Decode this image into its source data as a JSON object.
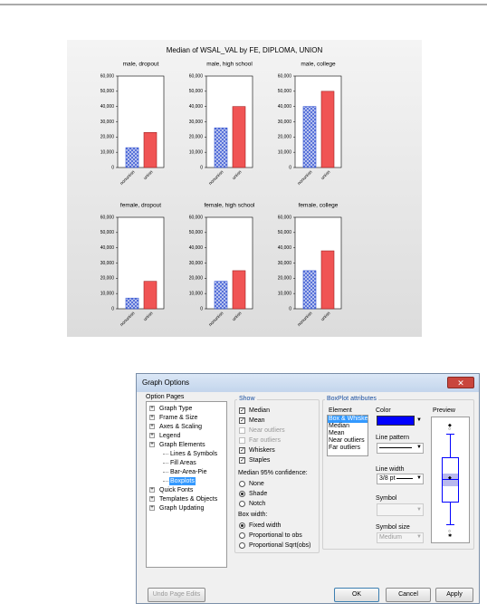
{
  "figure": {
    "title": "Median of WSAL_VAL by FE, DIPLOMA, UNION"
  },
  "chart_data": [
    {
      "type": "bar",
      "title": "male, dropout",
      "categories": [
        "nonunion",
        "union"
      ],
      "values": [
        13000,
        23000
      ],
      "colors": [
        "#3050d0",
        "#f05454"
      ],
      "ylim": [
        0,
        60000
      ],
      "yticks": [
        0,
        {
          "value": 10000,
          "label": "10,000"
        },
        {
          "value": 20000,
          "label": "20,000"
        },
        {
          "value": 30000,
          "label": "30,000"
        },
        {
          "value": 40000,
          "label": "40,000"
        },
        {
          "value": 50000,
          "label": "50,000"
        },
        {
          "value": 60000,
          "label": "60,000"
        }
      ]
    },
    {
      "type": "bar",
      "title": "male, high school",
      "categories": [
        "nonunion",
        "union"
      ],
      "values": [
        26000,
        40000
      ],
      "colors": [
        "#3050d0",
        "#f05454"
      ],
      "ylim": [
        0,
        60000
      ],
      "yticks": [
        0,
        {
          "value": 10000,
          "label": "10,000"
        },
        {
          "value": 20000,
          "label": "20,000"
        },
        {
          "value": 30000,
          "label": "30,000"
        },
        {
          "value": 40000,
          "label": "40,000"
        },
        {
          "value": 50000,
          "label": "50,000"
        },
        {
          "value": 60000,
          "label": "60,000"
        }
      ]
    },
    {
      "type": "bar",
      "title": "male, college",
      "categories": [
        "nonunion",
        "union"
      ],
      "values": [
        40000,
        50000
      ],
      "colors": [
        "#3050d0",
        "#f05454"
      ],
      "ylim": [
        0,
        60000
      ],
      "yticks": [
        0,
        {
          "value": 10000,
          "label": "10,000"
        },
        {
          "value": 20000,
          "label": "20,000"
        },
        {
          "value": 30000,
          "label": "30,000"
        },
        {
          "value": 40000,
          "label": "40,000"
        },
        {
          "value": 50000,
          "label": "50,000"
        },
        {
          "value": 60000,
          "label": "60,000"
        }
      ]
    },
    {
      "type": "bar",
      "title": "female, dropout",
      "categories": [
        "nonunion",
        "union"
      ],
      "values": [
        7000,
        18000
      ],
      "colors": [
        "#3050d0",
        "#f05454"
      ],
      "ylim": [
        0,
        60000
      ],
      "yticks": [
        0,
        {
          "value": 10000,
          "label": "10,000"
        },
        {
          "value": 20000,
          "label": "20,000"
        },
        {
          "value": 30000,
          "label": "30,000"
        },
        {
          "value": 40000,
          "label": "40,000"
        },
        {
          "value": 50000,
          "label": "50,000"
        },
        {
          "value": 60000,
          "label": "60,000"
        }
      ]
    },
    {
      "type": "bar",
      "title": "female, high school",
      "categories": [
        "nonunion",
        "union"
      ],
      "values": [
        18000,
        25000
      ],
      "colors": [
        "#3050d0",
        "#f05454"
      ],
      "ylim": [
        0,
        60000
      ],
      "yticks": [
        0,
        {
          "value": 10000,
          "label": "10,000"
        },
        {
          "value": 20000,
          "label": "20,000"
        },
        {
          "value": 30000,
          "label": "30,000"
        },
        {
          "value": 40000,
          "label": "40,000"
        },
        {
          "value": 50000,
          "label": "50,000"
        },
        {
          "value": 60000,
          "label": "60,000"
        }
      ]
    },
    {
      "type": "bar",
      "title": "female, college",
      "categories": [
        "nonunion",
        "union"
      ],
      "values": [
        25000,
        38000
      ],
      "colors": [
        "#3050d0",
        "#f05454"
      ],
      "ylim": [
        0,
        60000
      ],
      "yticks": [
        0,
        {
          "value": 10000,
          "label": "10,000"
        },
        {
          "value": 20000,
          "label": "20,000"
        },
        {
          "value": 30000,
          "label": "30,000"
        },
        {
          "value": 40000,
          "label": "40,000"
        },
        {
          "value": 50000,
          "label": "50,000"
        },
        {
          "value": 60000,
          "label": "60,000"
        }
      ]
    }
  ],
  "dialog": {
    "title": "Graph Options",
    "option_pages": {
      "label": "Option Pages",
      "items": [
        {
          "text": "Graph Type",
          "level": 0,
          "selected": false
        },
        {
          "text": "Frame & Size",
          "level": 0,
          "selected": false
        },
        {
          "text": "Axes & Scaling",
          "level": 0,
          "selected": false
        },
        {
          "text": "Legend",
          "level": 0,
          "selected": false
        },
        {
          "text": "Graph Elements",
          "level": 0,
          "selected": false
        },
        {
          "text": "Lines & Symbols",
          "level": 1,
          "selected": false
        },
        {
          "text": "Fill Areas",
          "level": 1,
          "selected": false
        },
        {
          "text": "Bar-Area-Pie",
          "level": 1,
          "selected": false
        },
        {
          "text": "Boxplots",
          "level": 1,
          "selected": true
        },
        {
          "text": "Quick Fonts",
          "level": 0,
          "selected": false
        },
        {
          "text": "Templates & Objects",
          "level": 0,
          "selected": false
        },
        {
          "text": "Graph Updating",
          "level": 0,
          "selected": false
        }
      ]
    },
    "show": {
      "label": "Show",
      "checks": [
        {
          "text": "Median",
          "checked": true,
          "enabled": true
        },
        {
          "text": "Mean",
          "checked": true,
          "enabled": true
        },
        {
          "text": "Near outliers",
          "checked": false,
          "enabled": false
        },
        {
          "text": "Far outliers",
          "checked": false,
          "enabled": false
        },
        {
          "text": "Whiskers",
          "checked": true,
          "enabled": true
        },
        {
          "text": "Staples",
          "checked": true,
          "enabled": true
        }
      ]
    },
    "median_ci": {
      "label": "Median 95% confidence:",
      "options": [
        {
          "text": "None",
          "selected": false
        },
        {
          "text": "Shade",
          "selected": true
        },
        {
          "text": "Notch",
          "selected": false
        }
      ]
    },
    "box_width": {
      "label": "Box width:",
      "options": [
        {
          "text": "Fixed width",
          "selected": true
        },
        {
          "text": "Proportional to obs",
          "selected": false
        },
        {
          "text": "Proportional Sqrt(obs)",
          "selected": false
        }
      ]
    },
    "boxplot_attributes": {
      "label": "BoxPlot attributes",
      "element_label": "Element",
      "elements": [
        {
          "text": "Box & Whisker",
          "selected": true
        },
        {
          "text": "Median",
          "selected": false
        },
        {
          "text": "Mean",
          "selected": false
        },
        {
          "text": "Near outliers",
          "selected": false
        },
        {
          "text": "Far outliers",
          "selected": false
        }
      ],
      "color_label": "Color",
      "color": "#0000ff",
      "line_pattern_label": "Line pattern",
      "line_width_label": "Line width",
      "line_width": "3/8 pt",
      "symbol_label": "Symbol",
      "symbol_size_label": "Symbol size",
      "symbol_size": "Medium",
      "preview_label": "Preview"
    },
    "buttons": [
      {
        "text": "Undo Page Edits",
        "enabled": false
      },
      {
        "text": "OK",
        "enabled": true
      },
      {
        "text": "Cancel",
        "enabled": true
      },
      {
        "text": "Apply",
        "enabled": true
      }
    ]
  }
}
